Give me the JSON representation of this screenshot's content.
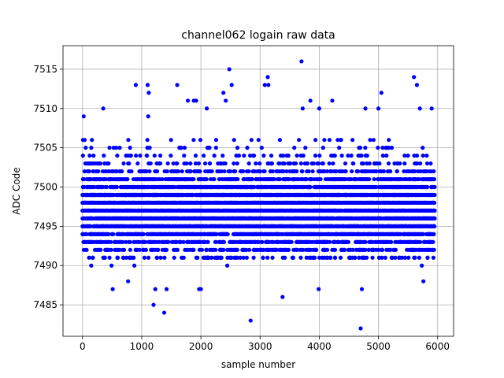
{
  "chart_data": {
    "type": "scatter",
    "title": "channel062 logain raw data",
    "xlabel": "sample number",
    "ylabel": "ADC Code",
    "xlim": [
      -330,
      6270
    ],
    "ylim": [
      7481,
      7518
    ],
    "xticks": [
      0,
      1000,
      2000,
      3000,
      4000,
      5000,
      6000
    ],
    "yticks": [
      7485,
      7490,
      7495,
      7500,
      7505,
      7510,
      7515
    ],
    "grid": true,
    "marker_color": "#0000ff",
    "series": [
      {
        "points_description": "dense cloud of samples 0-5950, ADC codes mostly 7490-7507, centered near 7497",
        "x_range": [
          0,
          5950
        ],
        "y_center": 7497,
        "y_band": [
          7490,
          7507
        ],
        "outliers": [
          [
            20,
            7509
          ],
          [
            350,
            7510
          ],
          [
            510,
            7487
          ],
          [
            770,
            7488
          ],
          [
            900,
            7513
          ],
          [
            1100,
            7513
          ],
          [
            1120,
            7512
          ],
          [
            1110,
            7509
          ],
          [
            1200,
            7485
          ],
          [
            1230,
            7487
          ],
          [
            1380,
            7484
          ],
          [
            1420,
            7487
          ],
          [
            1600,
            7513
          ],
          [
            1780,
            7511
          ],
          [
            1880,
            7511
          ],
          [
            1920,
            7511
          ],
          [
            1970,
            7487
          ],
          [
            2000,
            7487
          ],
          [
            2100,
            7510
          ],
          [
            2380,
            7512
          ],
          [
            2420,
            7511
          ],
          [
            2480,
            7515
          ],
          [
            2520,
            7513
          ],
          [
            2840,
            7483
          ],
          [
            3080,
            7513
          ],
          [
            3130,
            7514
          ],
          [
            3140,
            7513
          ],
          [
            3380,
            7486
          ],
          [
            3700,
            7516
          ],
          [
            3720,
            7510
          ],
          [
            3850,
            7511
          ],
          [
            3990,
            7487
          ],
          [
            4000,
            7510
          ],
          [
            4220,
            7511
          ],
          [
            4700,
            7482
          ],
          [
            4720,
            7487
          ],
          [
            4780,
            7510
          ],
          [
            5000,
            7510
          ],
          [
            5050,
            7512
          ],
          [
            5600,
            7514
          ],
          [
            5650,
            7513
          ],
          [
            5700,
            7510
          ],
          [
            5760,
            7488
          ],
          [
            5900,
            7510
          ]
        ]
      }
    ]
  }
}
